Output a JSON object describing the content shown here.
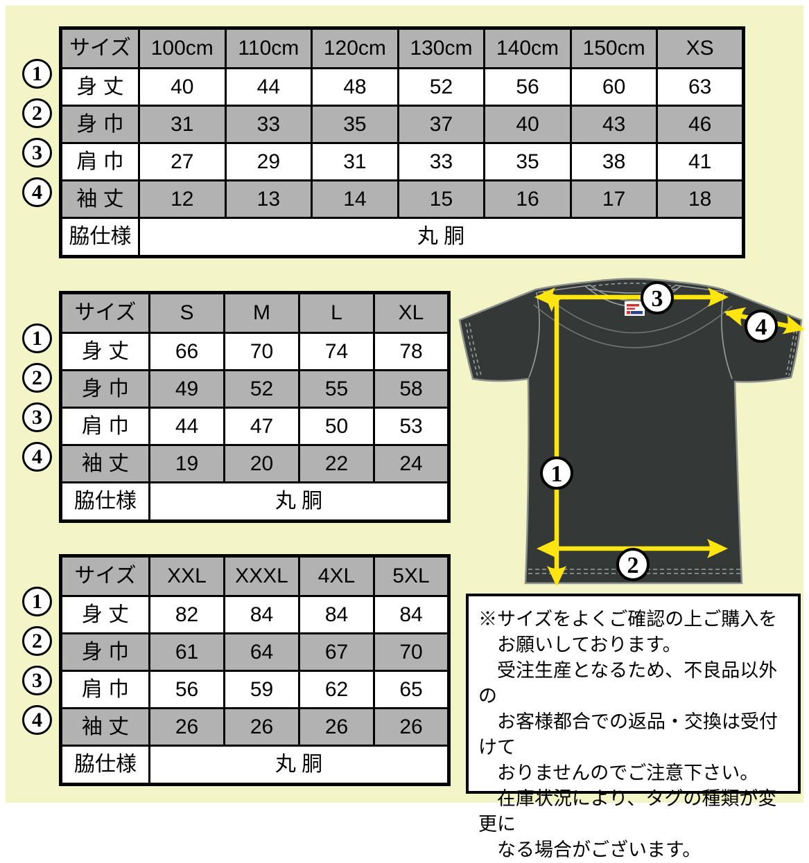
{
  "page": {
    "background_color": "#f4f5c6",
    "margin_color": "#ffffff"
  },
  "colors": {
    "table_header_gray": "#b2b2b2",
    "table_border": "#000000",
    "shirt_body": "#343836",
    "shirt_outline": "#8b8f8d",
    "seam_line": "#9aa09d",
    "arrow_yellow": "#ffe510",
    "marker_circle_bg": "#ffffff",
    "marker_circle_border": "#000000",
    "neck_label_red": "#d0342c",
    "neck_label_blue": "#2b3f8f"
  },
  "tables": [
    {
      "id": "kids",
      "header": [
        "サイズ",
        "100cm",
        "110cm",
        "120cm",
        "130cm",
        "140cm",
        "150cm",
        "XS"
      ],
      "rows": [
        {
          "marker": "1",
          "label": "身 丈",
          "values": [
            40,
            44,
            48,
            52,
            56,
            60,
            63
          ]
        },
        {
          "marker": "2",
          "label": "身 巾",
          "values": [
            31,
            33,
            35,
            37,
            40,
            43,
            46
          ]
        },
        {
          "marker": "3",
          "label": "肩 巾",
          "values": [
            27,
            29,
            31,
            33,
            35,
            38,
            41
          ]
        },
        {
          "marker": "4",
          "label": "袖 丈",
          "values": [
            12,
            13,
            14,
            15,
            16,
            17,
            18
          ]
        }
      ],
      "footer_label": "脇仕様",
      "footer_value": "丸 胴"
    },
    {
      "id": "adult",
      "header": [
        "サイズ",
        "S",
        "M",
        "L",
        "XL"
      ],
      "rows": [
        {
          "marker": "1",
          "label": "身 丈",
          "values": [
            66,
            70,
            74,
            78
          ]
        },
        {
          "marker": "2",
          "label": "身 巾",
          "values": [
            49,
            52,
            55,
            58
          ]
        },
        {
          "marker": "3",
          "label": "肩 巾",
          "values": [
            44,
            47,
            50,
            53
          ]
        },
        {
          "marker": "4",
          "label": "袖 丈",
          "values": [
            19,
            20,
            22,
            24
          ]
        }
      ],
      "footer_label": "脇仕様",
      "footer_value": "丸 胴"
    },
    {
      "id": "big",
      "header": [
        "サイズ",
        "XXL",
        "XXXL",
        "4XL",
        "5XL"
      ],
      "rows": [
        {
          "marker": "1",
          "label": "身 丈",
          "values": [
            82,
            84,
            84,
            84
          ]
        },
        {
          "marker": "2",
          "label": "身 巾",
          "values": [
            61,
            64,
            67,
            70
          ]
        },
        {
          "marker": "3",
          "label": "肩 巾",
          "values": [
            56,
            59,
            62,
            65
          ]
        },
        {
          "marker": "4",
          "label": "袖 丈",
          "values": [
            26,
            26,
            26,
            26
          ]
        }
      ],
      "footer_label": "脇仕様",
      "footer_value": "丸 胴"
    }
  ],
  "shirt": {
    "markers": [
      "1",
      "2",
      "3",
      "4"
    ]
  },
  "notice": {
    "text": "※サイズをよくご確認の上ご購入を\n　お願いしております。\n　受注生産となるため、不良品以外の\n　お客様都合での返品・交換は受付けて\n　おりませんのでご注意下さい。\n　在庫状況により、タグの種類が変更に\n　なる場合がございます。"
  }
}
